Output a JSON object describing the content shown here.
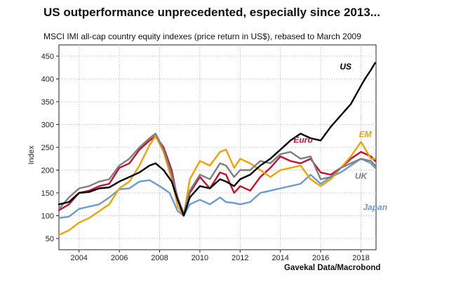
{
  "header": {
    "title": "US outperformance unprecedented, especially since 2013...",
    "subtitle": "MSCI IMI all-cap country equity indexes (price return in US$), rebased to March 2009"
  },
  "footer": {
    "source": "Gavekal Data/Macrobond"
  },
  "chart_data": {
    "type": "line",
    "title": "US outperformance unprecedented, especially since 2013...",
    "xlabel": "",
    "ylabel": "Index",
    "xlim": [
      2003.0,
      2018.75
    ],
    "ylim": [
      50,
      450
    ],
    "grid": true,
    "x_ticks": [
      2004,
      2006,
      2008,
      2010,
      2012,
      2014,
      2016,
      2018
    ],
    "x_tick_labels": [
      "2004",
      "2006",
      "2008",
      "2010",
      "2012",
      "2014",
      "2016",
      "2018"
    ],
    "y_ticks": [
      50,
      100,
      150,
      200,
      250,
      300,
      350,
      400,
      450
    ],
    "y_tick_labels": [
      "50",
      "100",
      "150",
      "200",
      "250",
      "300",
      "350",
      "400",
      "450"
    ],
    "series": [
      {
        "name": "Japan",
        "color": "#6b9bd2",
        "label_at": [
          2018.1,
          112
        ],
        "x": [
          2003.0,
          2003.5,
          2004.0,
          2004.5,
          2005.0,
          2005.5,
          2006.0,
          2006.5,
          2007.0,
          2007.5,
          2008.0,
          2008.5,
          2008.9,
          2009.2,
          2009.5,
          2010.0,
          2010.5,
          2011.0,
          2011.3,
          2011.7,
          2012.0,
          2012.5,
          2013.0,
          2013.5,
          2014.0,
          2014.5,
          2015.0,
          2015.5,
          2016.0,
          2016.5,
          2017.0,
          2017.5,
          2018.0,
          2018.5,
          2018.7
        ],
        "y": [
          95,
          98,
          115,
          120,
          125,
          140,
          158,
          160,
          175,
          178,
          165,
          150,
          110,
          100,
          125,
          135,
          125,
          140,
          130,
          128,
          125,
          130,
          150,
          155,
          160,
          165,
          170,
          190,
          170,
          185,
          195,
          210,
          225,
          215,
          205
        ]
      },
      {
        "name": "Euro",
        "color": "#c8102e",
        "label_at": [
          2014.65,
          260
        ],
        "x": [
          2003.0,
          2003.5,
          2004.0,
          2004.5,
          2005.0,
          2005.5,
          2006.0,
          2006.5,
          2007.0,
          2007.5,
          2007.8,
          2008.2,
          2008.6,
          2008.9,
          2009.2,
          2009.5,
          2010.0,
          2010.5,
          2011.0,
          2011.3,
          2011.7,
          2012.0,
          2012.5,
          2013.0,
          2013.5,
          2014.0,
          2014.5,
          2015.0,
          2015.5,
          2016.0,
          2016.5,
          2017.0,
          2017.5,
          2018.0,
          2018.5,
          2018.7
        ],
        "y": [
          112,
          125,
          150,
          155,
          165,
          170,
          205,
          215,
          245,
          265,
          275,
          250,
          200,
          135,
          100,
          150,
          185,
          160,
          195,
          190,
          150,
          165,
          155,
          185,
          205,
          230,
          220,
          215,
          225,
          195,
          190,
          205,
          225,
          240,
          230,
          220
        ]
      },
      {
        "name": "EM",
        "color": "#f5a100",
        "label_at": [
          2017.9,
          272
        ],
        "x": [
          2003.0,
          2003.5,
          2004.0,
          2004.5,
          2005.0,
          2005.5,
          2006.0,
          2006.5,
          2007.0,
          2007.5,
          2007.8,
          2008.2,
          2008.6,
          2008.9,
          2009.2,
          2009.5,
          2010.0,
          2010.5,
          2011.0,
          2011.3,
          2011.7,
          2012.0,
          2012.5,
          2013.0,
          2013.5,
          2014.0,
          2014.5,
          2015.0,
          2015.5,
          2016.0,
          2016.5,
          2017.0,
          2017.5,
          2018.0,
          2018.5,
          2018.7
        ],
        "y": [
          58,
          68,
          85,
          95,
          110,
          125,
          160,
          175,
          210,
          255,
          275,
          240,
          180,
          120,
          100,
          180,
          220,
          210,
          240,
          245,
          205,
          225,
          215,
          200,
          185,
          200,
          205,
          210,
          180,
          165,
          180,
          205,
          230,
          262,
          225,
          225
        ]
      },
      {
        "name": "UK",
        "color": "#7f7f7f",
        "label_at": [
          2017.7,
          181
        ],
        "x": [
          2003.0,
          2003.5,
          2004.0,
          2004.5,
          2005.0,
          2005.5,
          2006.0,
          2006.5,
          2007.0,
          2007.5,
          2007.8,
          2008.2,
          2008.6,
          2008.9,
          2009.2,
          2009.5,
          2010.0,
          2010.5,
          2011.0,
          2011.3,
          2011.7,
          2012.0,
          2012.5,
          2013.0,
          2013.5,
          2014.0,
          2014.5,
          2015.0,
          2015.5,
          2016.0,
          2016.5,
          2017.0,
          2017.5,
          2018.0,
          2018.5,
          2018.7
        ],
        "y": [
          115,
          140,
          160,
          165,
          175,
          180,
          210,
          225,
          250,
          270,
          280,
          245,
          190,
          140,
          105,
          155,
          190,
          180,
          215,
          210,
          185,
          200,
          200,
          220,
          215,
          235,
          240,
          225,
          230,
          180,
          185,
          205,
          215,
          225,
          220,
          210
        ]
      },
      {
        "name": "US",
        "color": "#000000",
        "label_at": [
          2016.95,
          421
        ],
        "x": [
          2003.0,
          2003.5,
          2004.0,
          2004.5,
          2005.0,
          2005.5,
          2006.0,
          2006.5,
          2007.0,
          2007.5,
          2007.8,
          2008.2,
          2008.6,
          2008.9,
          2009.2,
          2009.5,
          2010.0,
          2010.5,
          2011.0,
          2011.3,
          2011.7,
          2012.0,
          2012.5,
          2013.0,
          2013.5,
          2014.0,
          2014.5,
          2015.0,
          2015.5,
          2016.0,
          2016.5,
          2017.0,
          2017.5,
          2018.0,
          2018.2,
          2018.5,
          2018.7
        ],
        "y": [
          125,
          130,
          150,
          152,
          160,
          162,
          175,
          185,
          195,
          210,
          215,
          200,
          175,
          135,
          100,
          140,
          165,
          160,
          180,
          175,
          165,
          180,
          190,
          210,
          225,
          245,
          265,
          280,
          270,
          265,
          295,
          320,
          345,
          385,
          400,
          420,
          435
        ]
      }
    ]
  }
}
